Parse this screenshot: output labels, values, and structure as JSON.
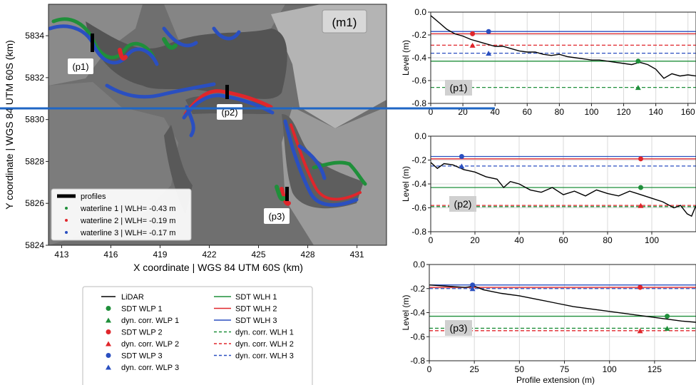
{
  "map": {
    "label": "(m1)",
    "xlabel": "X coordinate | WGS 84 UTM 60S (km)",
    "ylabel": "Y coordinate | WGS 84 UTM 60S (km)",
    "xticks": [
      "413",
      "416",
      "419",
      "422",
      "425",
      "428",
      "431"
    ],
    "yticks": [
      "5834",
      "5832",
      "5830",
      "5828",
      "5826",
      "5824"
    ],
    "xlim": [
      412.2,
      432.8
    ],
    "ylim": [
      5824,
      5835.5
    ],
    "profile_labels": [
      "(p1)",
      "(p2)",
      "(p3)"
    ],
    "legend": [
      {
        "label": "profiles",
        "color": "#000000"
      },
      {
        "label": "waterline 1 | WLH= -0.43 m",
        "color": "#1f8f3a"
      },
      {
        "label": "waterline 2 | WLH= -0.19 m",
        "color": "#e0262b"
      },
      {
        "label": "waterline 3 | WLH= -0.17 m",
        "color": "#2a4fc0"
      }
    ]
  },
  "legend2": {
    "col1": [
      {
        "label": "LiDAR",
        "type": "line",
        "color": "#000000"
      },
      {
        "label": "SDT WLP 1",
        "type": "dot",
        "color": "#1f8f3a"
      },
      {
        "label": "dyn. corr. WLP 1",
        "type": "tri",
        "color": "#1f8f3a"
      },
      {
        "label": "SDT WLP 2",
        "type": "dot",
        "color": "#e0262b"
      },
      {
        "label": "dyn. corr. WLP 2",
        "type": "tri",
        "color": "#e0262b"
      },
      {
        "label": "SDT WLP 3",
        "type": "dot",
        "color": "#2a4fc0"
      },
      {
        "label": "dyn. corr. WLP 3",
        "type": "tri",
        "color": "#2a4fc0"
      }
    ],
    "col2": [
      {
        "label": "SDT WLH 1",
        "type": "solid",
        "color": "#1f8f3a"
      },
      {
        "label": "SDT WLH 2",
        "type": "solid",
        "color": "#e0262b"
      },
      {
        "label": "SDT WLH 3",
        "type": "solid",
        "color": "#2a4fc0"
      },
      {
        "label": "dyn. corr. WLH 1",
        "type": "dash",
        "color": "#1f8f3a"
      },
      {
        "label": "dyn. corr. WLH 2",
        "type": "dash",
        "color": "#e0262b"
      },
      {
        "label": "dyn. corr. WLH 3",
        "type": "dash",
        "color": "#2a4fc0"
      }
    ]
  },
  "chart_data": [
    {
      "type": "line",
      "label": "(p1)",
      "ylabel": "Level (m)",
      "xlabel": "",
      "xlim": [
        0,
        165
      ],
      "ylim": [
        -0.8,
        0.0
      ],
      "xticks": [
        "0",
        "20",
        "40",
        "60",
        "80",
        "100",
        "120",
        "140",
        "160"
      ],
      "yticks": [
        "0.0",
        "-0.2",
        "-0.4",
        "-0.6",
        "-0.8"
      ],
      "sdt_wlh": {
        "1": -0.43,
        "2": -0.19,
        "3": -0.17
      },
      "dyn_wlh": {
        "1": -0.66,
        "2": -0.29,
        "3": -0.36
      },
      "sdt_wlp": [
        {
          "wl": "2",
          "x": 26,
          "y": -0.19
        },
        {
          "wl": "3",
          "x": 36,
          "y": -0.17
        },
        {
          "wl": "1",
          "x": 129,
          "y": -0.43
        }
      ],
      "dyn_wlp": [
        {
          "wl": "2",
          "x": 26,
          "y": -0.29
        },
        {
          "wl": "3",
          "x": 36,
          "y": -0.36
        },
        {
          "wl": "1",
          "x": 129,
          "y": -0.66
        }
      ],
      "lidar": {
        "x": [
          0,
          5,
          10,
          15,
          20,
          25,
          30,
          35,
          40,
          45,
          50,
          55,
          60,
          65,
          70,
          75,
          80,
          85,
          90,
          95,
          100,
          105,
          110,
          115,
          120,
          125,
          130,
          135,
          140,
          145,
          150,
          155,
          160,
          165
        ],
        "y": [
          -0.03,
          -0.09,
          -0.15,
          -0.19,
          -0.21,
          -0.24,
          -0.26,
          -0.28,
          -0.3,
          -0.3,
          -0.32,
          -0.34,
          -0.35,
          -0.35,
          -0.37,
          -0.38,
          -0.37,
          -0.39,
          -0.4,
          -0.41,
          -0.42,
          -0.42,
          -0.43,
          -0.44,
          -0.45,
          -0.46,
          -0.44,
          -0.46,
          -0.5,
          -0.58,
          -0.54,
          -0.56,
          -0.55,
          -0.56
        ]
      }
    },
    {
      "type": "line",
      "label": "(p2)",
      "ylabel": "Level (m)",
      "xlabel": "",
      "xlim": [
        0,
        120
      ],
      "ylim": [
        -0.8,
        0.0
      ],
      "xticks": [
        "0",
        "20",
        "40",
        "60",
        "80",
        "100"
      ],
      "yticks": [
        "0.0",
        "-0.2",
        "-0.4",
        "-0.6",
        "-0.8"
      ],
      "sdt_wlh": {
        "1": -0.43,
        "2": -0.19,
        "3": -0.17
      },
      "dyn_wlh": {
        "1": -0.59,
        "2": -0.58,
        "3": -0.25
      },
      "sdt_wlp": [
        {
          "wl": "3",
          "x": 14,
          "y": -0.17
        },
        {
          "wl": "2",
          "x": 95,
          "y": -0.19
        },
        {
          "wl": "1",
          "x": 95,
          "y": -0.43
        }
      ],
      "dyn_wlp": [
        {
          "wl": "3",
          "x": 14,
          "y": -0.25
        },
        {
          "wl": "2",
          "x": 95,
          "y": -0.58
        }
      ],
      "lidar": {
        "x": [
          0,
          3,
          6,
          10,
          15,
          20,
          25,
          30,
          33,
          36,
          40,
          45,
          50,
          55,
          60,
          65,
          70,
          75,
          80,
          85,
          90,
          95,
          100,
          105,
          110,
          113,
          116,
          118,
          120
        ],
        "y": [
          -0.22,
          -0.27,
          -0.23,
          -0.24,
          -0.28,
          -0.3,
          -0.34,
          -0.36,
          -0.43,
          -0.38,
          -0.4,
          -0.45,
          -0.47,
          -0.43,
          -0.49,
          -0.46,
          -0.5,
          -0.45,
          -0.48,
          -0.5,
          -0.46,
          -0.49,
          -0.52,
          -0.55,
          -0.6,
          -0.58,
          -0.65,
          -0.67,
          -0.58
        ]
      }
    },
    {
      "type": "line",
      "label": "(p3)",
      "ylabel": "Level (m)",
      "xlabel": "Profile extension (m)",
      "xlim": [
        0,
        148
      ],
      "ylim": [
        -0.8,
        0.0
      ],
      "xticks": [
        "0",
        "25",
        "50",
        "75",
        "100",
        "125"
      ],
      "yticks": [
        "0.0",
        "-0.2",
        "-0.4",
        "-0.6",
        "-0.8"
      ],
      "sdt_wlh": {
        "1": -0.43,
        "2": -0.19,
        "3": -0.17
      },
      "dyn_wlh": {
        "1": -0.53,
        "2": -0.55,
        "3": -0.2
      },
      "sdt_wlp": [
        {
          "wl": "3",
          "x": 24,
          "y": -0.17
        },
        {
          "wl": "2",
          "x": 117,
          "y": -0.19
        },
        {
          "wl": "1",
          "x": 132,
          "y": -0.43
        }
      ],
      "dyn_wlp": [
        {
          "wl": "3",
          "x": 24,
          "y": -0.2
        },
        {
          "wl": "2",
          "x": 117,
          "y": -0.55
        },
        {
          "wl": "1",
          "x": 132,
          "y": -0.53
        }
      ],
      "lidar": {
        "x": [
          0,
          10,
          20,
          25,
          30,
          40,
          50,
          60,
          70,
          80,
          90,
          100,
          110,
          120,
          130,
          140,
          148
        ],
        "y": [
          -0.17,
          -0.18,
          -0.19,
          -0.18,
          -0.21,
          -0.24,
          -0.26,
          -0.29,
          -0.32,
          -0.35,
          -0.37,
          -0.39,
          -0.41,
          -0.43,
          -0.45,
          -0.47,
          -0.48
        ]
      }
    }
  ],
  "colors": {
    "wl1": "#1f8f3a",
    "wl2": "#e0262b",
    "wl3": "#2a4fc0",
    "separator": "#1f66c4"
  }
}
